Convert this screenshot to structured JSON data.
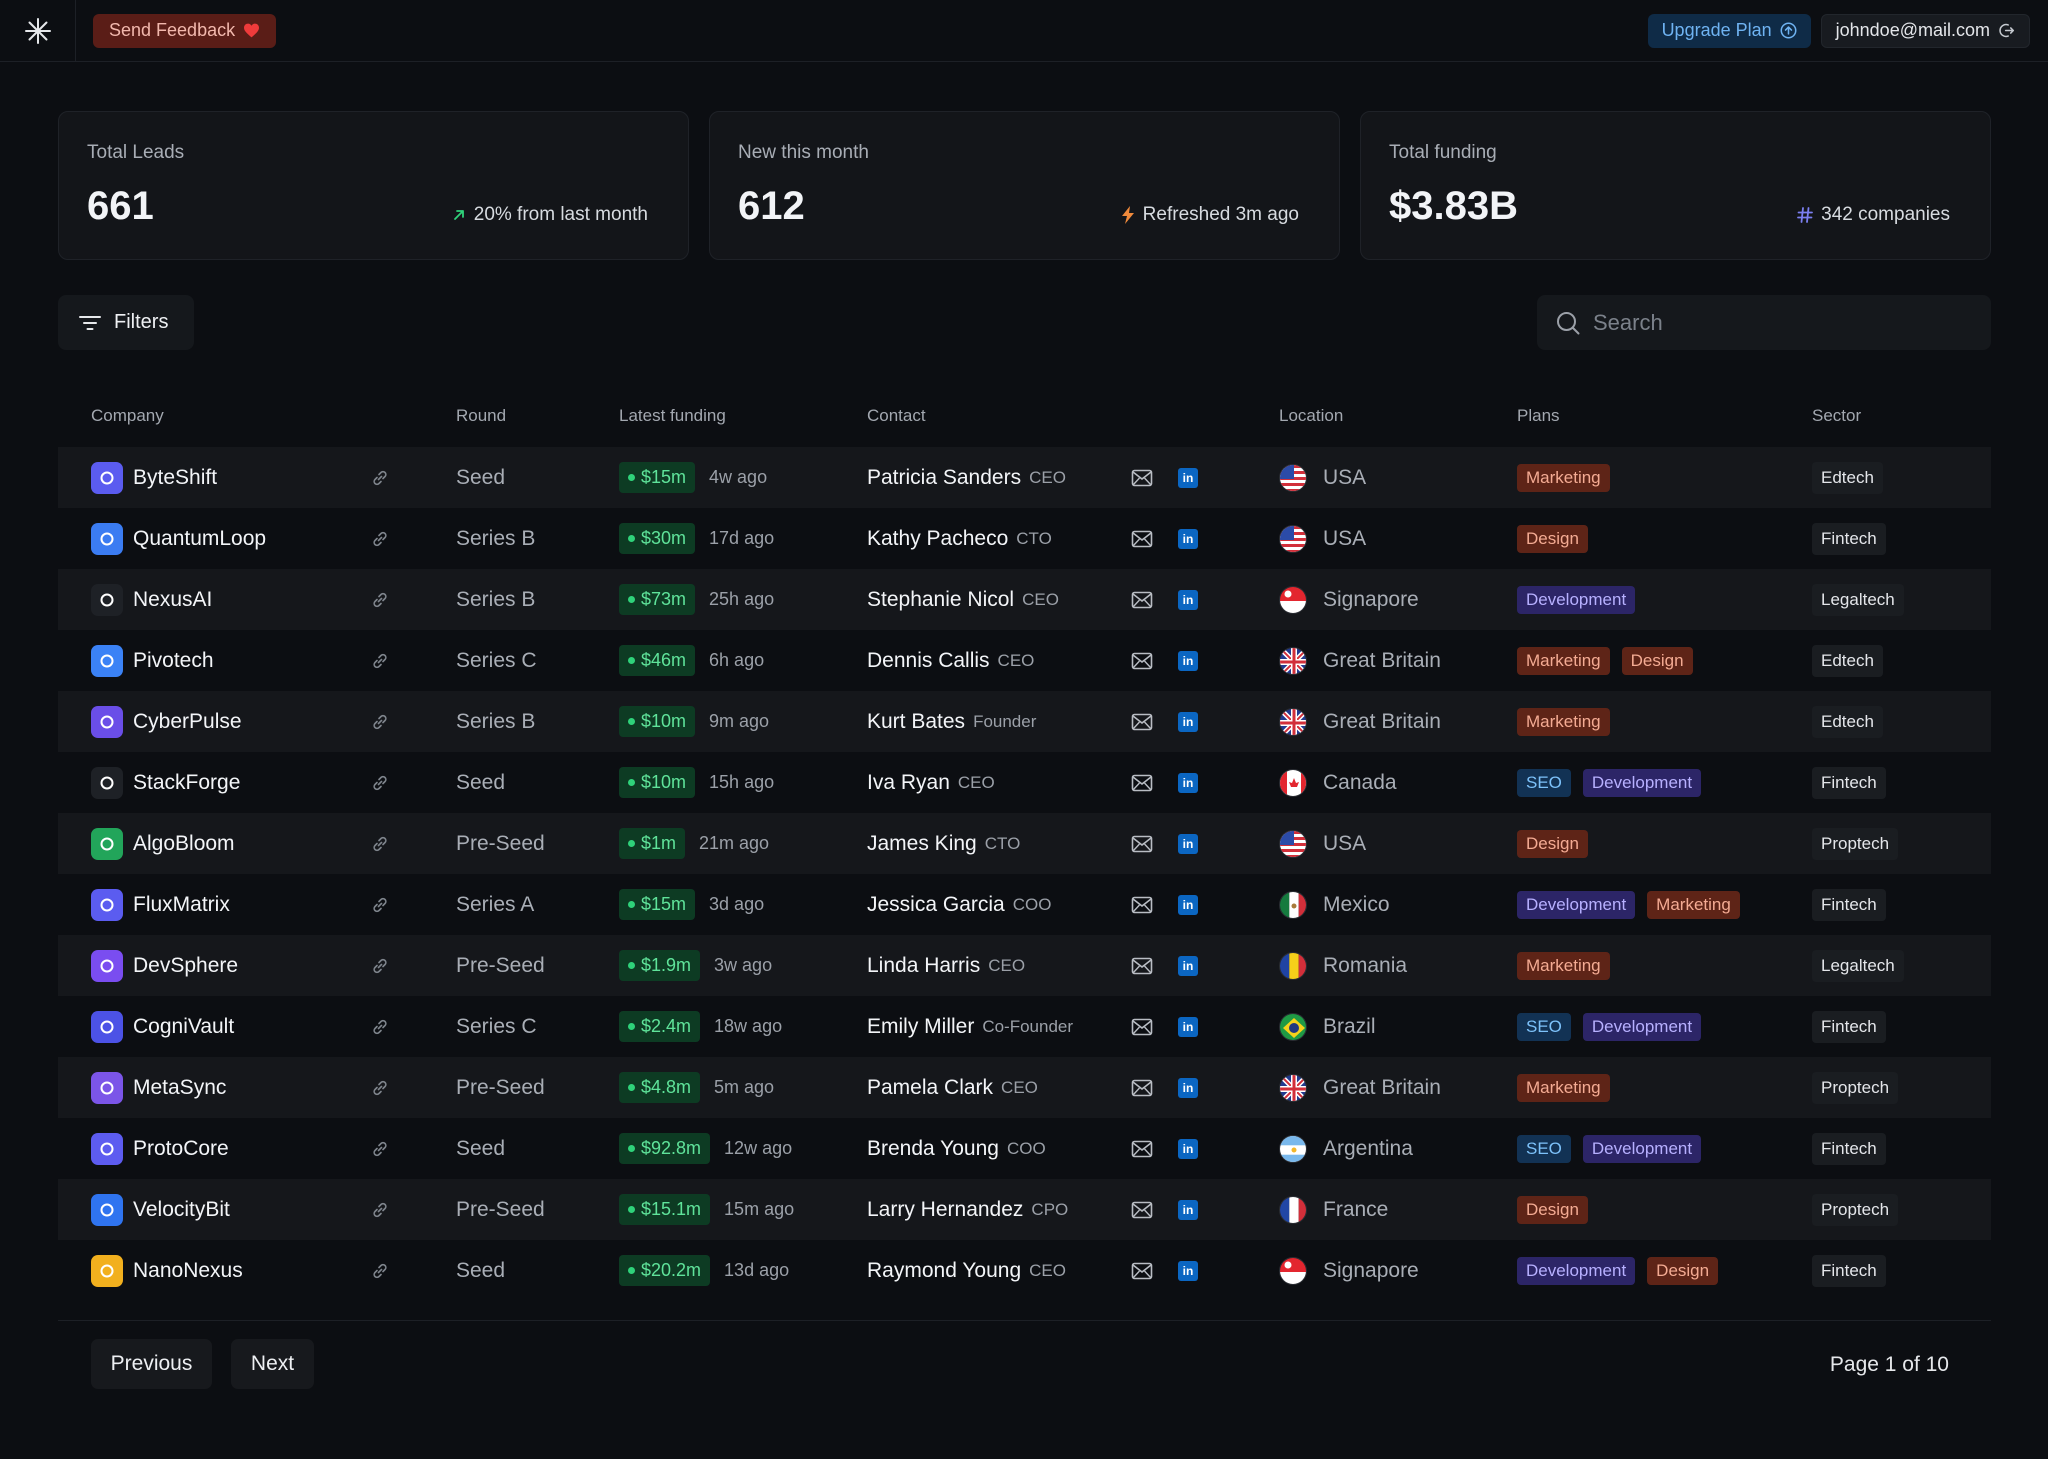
{
  "topbar": {
    "feedback_label": "Send Feedback",
    "upgrade_label": "Upgrade Plan",
    "account_email": "johndoe@mail.com"
  },
  "stats": [
    {
      "label": "Total Leads",
      "value": "661",
      "meta": "20% from last month",
      "meta_icon": "arrow-up-right-icon",
      "meta_color": "#2fd27a"
    },
    {
      "label": "New this month",
      "value": "612",
      "meta": "Refreshed 3m ago",
      "meta_icon": "lightning-icon",
      "meta_color": "#f08a3c"
    },
    {
      "label": "Total funding",
      "value": "$3.83B",
      "meta": "342 companies",
      "meta_icon": "hash-icon",
      "meta_color": "#7b7ff0"
    }
  ],
  "toolbar": {
    "filters_label": "Filters",
    "search_placeholder": "Search"
  },
  "table": {
    "columns": {
      "company": "Company",
      "round": "Round",
      "funding": "Latest funding",
      "contact": "Contact",
      "location": "Location",
      "plans": "Plans",
      "sector": "Sector"
    },
    "rows": [
      {
        "company": "ByteShift",
        "icon_color": "#5b5cf0",
        "round": "Seed",
        "amount": "$15m",
        "ago": "4w ago",
        "contact": "Patricia Sanders",
        "role": "CEO",
        "location": "USA",
        "flag": "usa",
        "plans": [
          "Marketing"
        ],
        "sector": "Edtech"
      },
      {
        "company": "QuantumLoop",
        "icon_color": "#3b7cf2",
        "round": "Series B",
        "amount": "$30m",
        "ago": "17d ago",
        "contact": "Kathy Pacheco",
        "role": "CTO",
        "location": "USA",
        "flag": "usa",
        "plans": [
          "Design"
        ],
        "sector": "Fintech"
      },
      {
        "company": "NexusAI",
        "icon_color": "#1e2126",
        "round": "Series B",
        "amount": "$73m",
        "ago": "25h ago",
        "contact": "Stephanie Nicol",
        "role": "CEO",
        "location": "Signapore",
        "flag": "sg",
        "plans": [
          "Development"
        ],
        "sector": "Legaltech"
      },
      {
        "company": "Pivotech",
        "icon_color": "#3b82f6",
        "round": "Series C",
        "amount": "$46m",
        "ago": "6h ago",
        "contact": "Dennis Callis",
        "role": "CEO",
        "location": "Great Britain",
        "flag": "gb",
        "plans": [
          "Marketing",
          "Design"
        ],
        "sector": "Edtech"
      },
      {
        "company": "CyberPulse",
        "icon_color": "#6a4ee8",
        "round": "Series B",
        "amount": "$10m",
        "ago": "9m ago",
        "contact": "Kurt Bates",
        "role": "Founder",
        "location": "Great Britain",
        "flag": "gb",
        "plans": [
          "Marketing"
        ],
        "sector": "Edtech"
      },
      {
        "company": "StackForge",
        "icon_color": "#1e2126",
        "round": "Seed",
        "amount": "$10m",
        "ago": "15h ago",
        "contact": "Iva Ryan",
        "role": "CEO",
        "location": "Canada",
        "flag": "ca",
        "plans": [
          "SEO",
          "Development"
        ],
        "sector": "Fintech"
      },
      {
        "company": "AlgoBloom",
        "icon_color": "#22a55a",
        "round": "Pre-Seed",
        "amount": "$1m",
        "ago": "21m ago",
        "contact": "James King",
        "role": "CTO",
        "location": "USA",
        "flag": "usa",
        "plans": [
          "Design"
        ],
        "sector": "Proptech"
      },
      {
        "company": "FluxMatrix",
        "icon_color": "#5b5cf0",
        "round": "Series A",
        "amount": "$15m",
        "ago": "3d ago",
        "contact": "Jessica Garcia",
        "role": "COO",
        "location": "Mexico",
        "flag": "mx",
        "plans": [
          "Development",
          "Marketing"
        ],
        "sector": "Fintech"
      },
      {
        "company": "DevSphere",
        "icon_color": "#7a4df0",
        "round": "Pre-Seed",
        "amount": "$1.9m",
        "ago": "3w ago",
        "contact": "Linda Harris",
        "role": "CEO",
        "location": "Romania",
        "flag": "ro",
        "plans": [
          "Marketing"
        ],
        "sector": "Legaltech"
      },
      {
        "company": "CogniVault",
        "icon_color": "#4c52e6",
        "round": "Series C",
        "amount": "$2.4m",
        "ago": "18w ago",
        "contact": "Emily Miller",
        "role": "Co-Founder",
        "location": "Brazil",
        "flag": "br",
        "plans": [
          "SEO",
          "Development"
        ],
        "sector": "Fintech"
      },
      {
        "company": "MetaSync",
        "icon_color": "#7b55e8",
        "round": "Pre-Seed",
        "amount": "$4.8m",
        "ago": "5m ago",
        "contact": "Pamela Clark",
        "role": "CEO",
        "location": "Great Britain",
        "flag": "gb",
        "plans": [
          "Marketing"
        ],
        "sector": "Proptech"
      },
      {
        "company": "ProtoCore",
        "icon_color": "#5d5cf0",
        "round": "Seed",
        "amount": "$92.8m",
        "ago": "12w ago",
        "contact": "Brenda Young",
        "role": "COO",
        "location": "Argentina",
        "flag": "ar",
        "plans": [
          "SEO",
          "Development"
        ],
        "sector": "Fintech"
      },
      {
        "company": "VelocityBit",
        "icon_color": "#2f74f0",
        "round": "Pre-Seed",
        "amount": "$15.1m",
        "ago": "15m ago",
        "contact": "Larry Hernandez",
        "role": "CPO",
        "location": "France",
        "flag": "fr",
        "plans": [
          "Design"
        ],
        "sector": "Proptech"
      },
      {
        "company": "NanoNexus",
        "icon_color": "#f2b01e",
        "round": "Seed",
        "amount": "$20.2m",
        "ago": "13d ago",
        "contact": "Raymond Young",
        "role": "CEO",
        "location": "Signapore",
        "flag": "sg",
        "plans": [
          "Development",
          "Design"
        ],
        "sector": "Fintech"
      }
    ]
  },
  "pagination": {
    "previous_label": "Previous",
    "next_label": "Next",
    "page_info": "Page 1 of 10"
  }
}
